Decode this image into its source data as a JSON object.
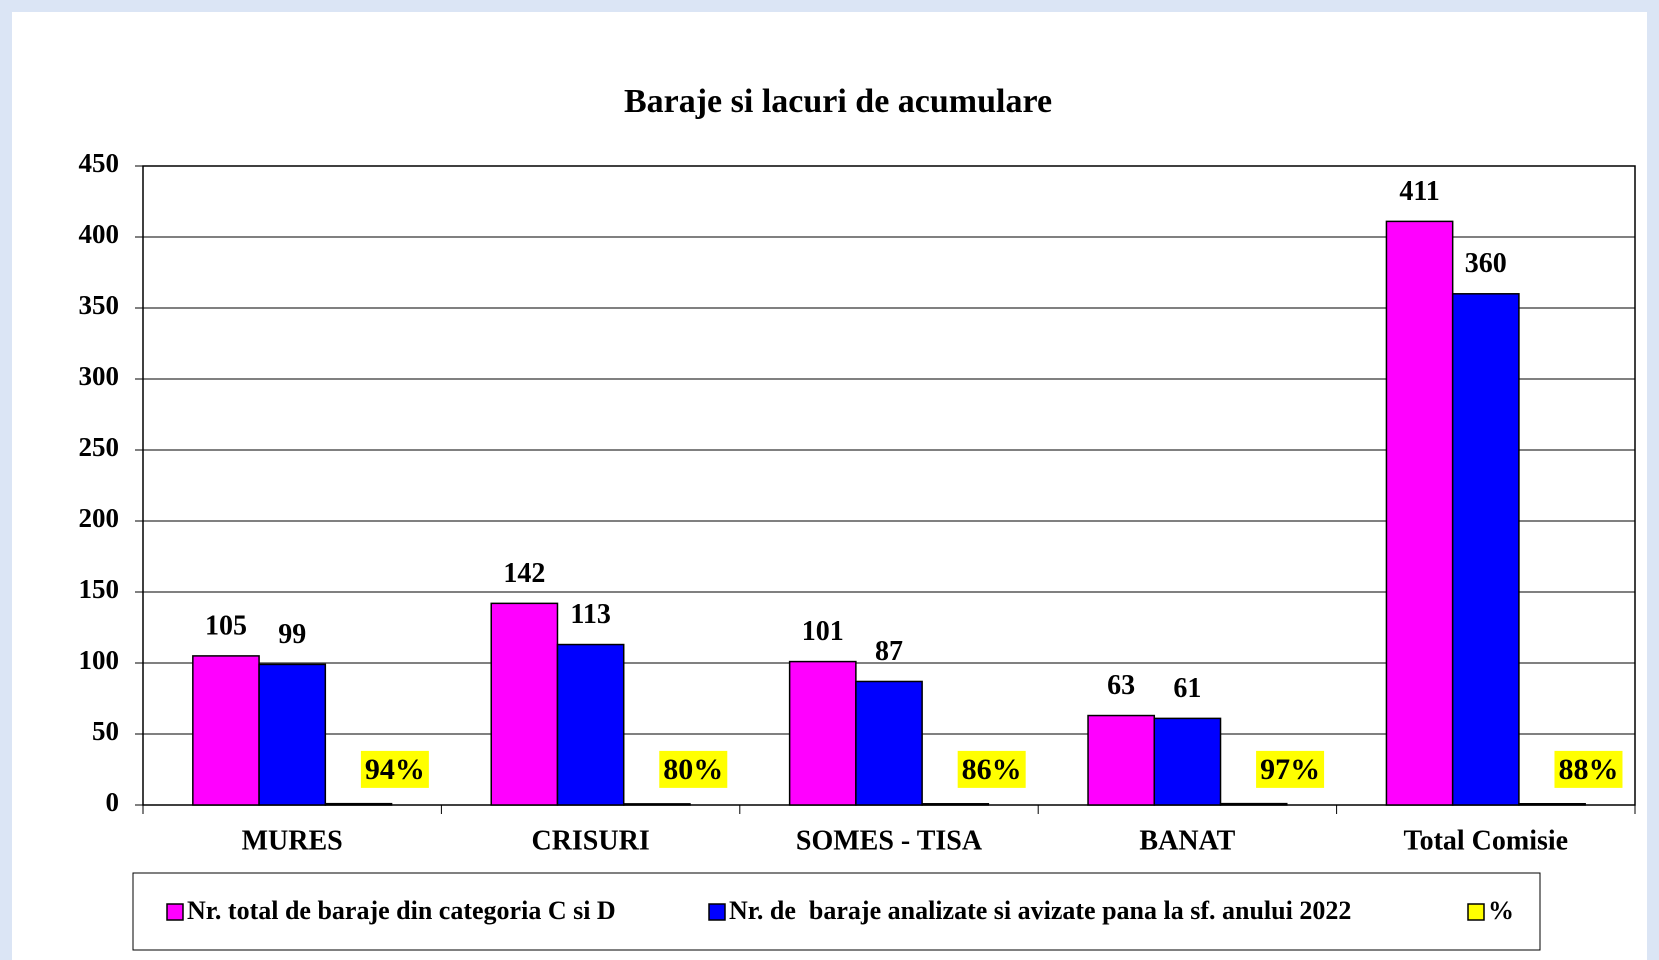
{
  "chart_data": {
    "type": "bar",
    "title": "Baraje si lacuri de acumulare",
    "categories": [
      "MURES",
      "CRISURI",
      "SOMES - TISA",
      "BANAT",
      "Total Comisie"
    ],
    "series": [
      {
        "name": "Nr. total de baraje din categoria C si D",
        "color": "#ff00ff",
        "values": [
          105,
          142,
          101,
          63,
          411
        ]
      },
      {
        "name": "Nr. de  baraje analizate si avizate pana la sf. anului 2022",
        "color": "#0000ff",
        "values": [
          99,
          113,
          87,
          61,
          360
        ]
      },
      {
        "name": "%",
        "color": "#ffff00",
        "values": [
          0.94,
          0.8,
          0.86,
          0.97,
          0.88
        ],
        "value_labels": [
          "94%",
          "80%",
          "86%",
          "97%",
          "88%"
        ]
      }
    ],
    "ylim": [
      0,
      450
    ],
    "yticks": [
      0,
      50,
      100,
      150,
      200,
      250,
      300,
      350,
      400,
      450
    ],
    "grid": true,
    "legend": "bottom"
  }
}
